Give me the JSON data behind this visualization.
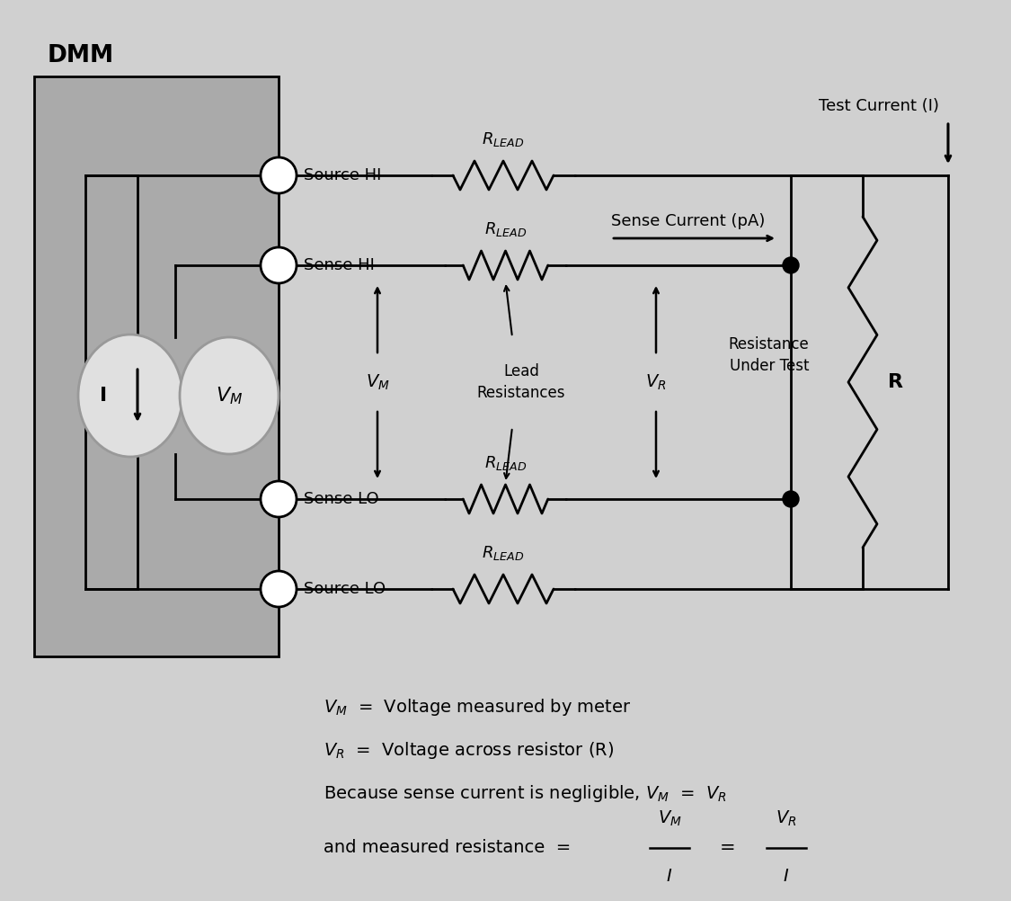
{
  "bg_color": "#d0d0d0",
  "dmm_box_color": "#aaaaaa",
  "wire_color": "#000000",
  "line_width": 2.0,
  "dmm_label": "DMM",
  "source_hi_label": "Source HI",
  "sense_hi_label": "Sense HI",
  "sense_lo_label": "Sense LO",
  "source_lo_label": "Source LO",
  "test_current_label": "Test Current (I)",
  "sense_current_label": "Sense Current (pA)",
  "lead_resistances_label": "Lead\nResistances",
  "resistance_under_test_label": "Resistance\nUnder Test",
  "r_label": "R",
  "node_color": "#000000",
  "circle_edge": "#000000",
  "circle_face": "#ffffff",
  "instrument_face": "#e0e0e0",
  "instrument_edge": "#999999"
}
